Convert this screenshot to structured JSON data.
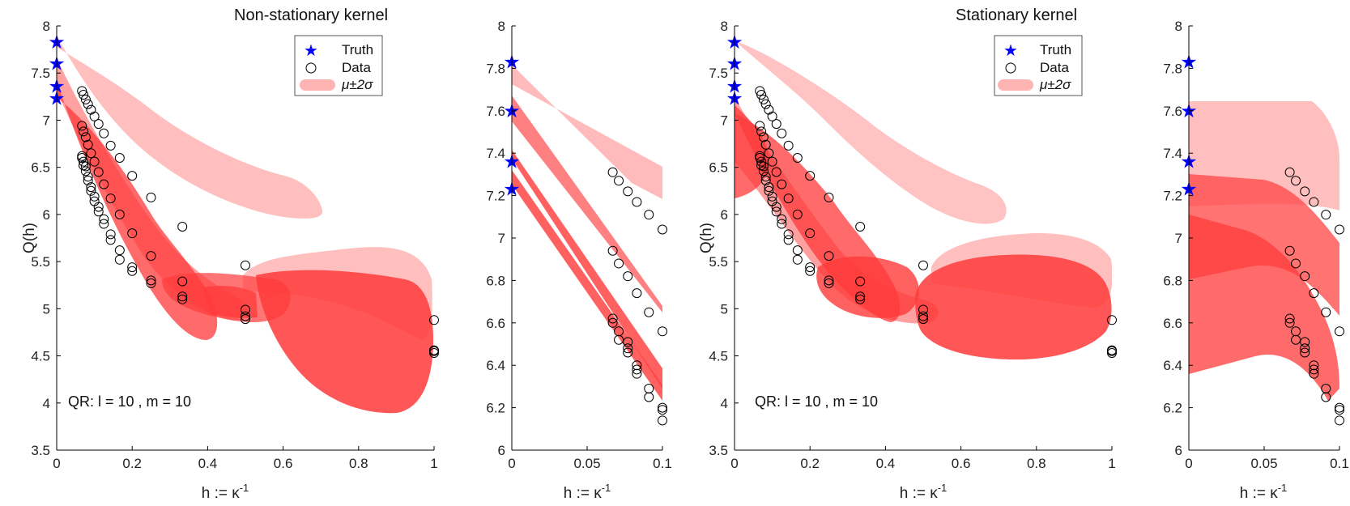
{
  "figure": {
    "legend": {
      "truth": "Truth",
      "data": "Data",
      "band": "μ±2σ"
    },
    "annotation": "QR: l = 10 , m = 10"
  },
  "colors": {
    "truth": "#0000ff",
    "band_light": "#ffb4b4",
    "band_dark": "#ff3a3a",
    "axis": "#000000"
  },
  "chart_data": [
    {
      "id": "p1",
      "type": "scatter",
      "title": "Non-stationary kernel",
      "xlabel": "h := κ",
      "xlabel_sup": "-1",
      "ylabel": "Q(h)",
      "xlim": [
        0,
        1
      ],
      "ylim": [
        3.5,
        8
      ],
      "xticks": [
        0,
        0.2,
        0.4,
        0.6,
        0.8,
        1
      ],
      "xticklabels": [
        "0",
        "0.2",
        "0.4",
        "0.6",
        "0.8",
        "1"
      ],
      "yticks": [
        3.5,
        4,
        4.5,
        5,
        5.5,
        6,
        6.5,
        7,
        7.5,
        8
      ],
      "yticklabels": [
        "3.5",
        "4",
        "4.5",
        "5",
        "5.5",
        "6",
        "6.5",
        "7",
        "7.5",
        "8"
      ],
      "legend_position": "top-right",
      "annotation_position": "bottom-left",
      "truth": [
        {
          "x": 0,
          "y": 7.83
        },
        {
          "x": 0,
          "y": 7.6
        },
        {
          "x": 0,
          "y": 7.36
        },
        {
          "x": 0,
          "y": 7.23
        }
      ],
      "data_points": [
        {
          "x": 0.067,
          "y": 7.31
        },
        {
          "x": 0.071,
          "y": 7.27
        },
        {
          "x": 0.077,
          "y": 7.22
        },
        {
          "x": 0.083,
          "y": 7.17
        },
        {
          "x": 0.091,
          "y": 7.11
        },
        {
          "x": 0.1,
          "y": 7.04
        },
        {
          "x": 0.111,
          "y": 6.96
        },
        {
          "x": 0.125,
          "y": 6.86
        },
        {
          "x": 0.143,
          "y": 6.73
        },
        {
          "x": 0.167,
          "y": 6.6
        },
        {
          "x": 0.2,
          "y": 6.41
        },
        {
          "x": 0.25,
          "y": 6.18
        },
        {
          "x": 0.333,
          "y": 5.87
        },
        {
          "x": 0.5,
          "y": 5.46
        },
        {
          "x": 1,
          "y": 4.88
        },
        {
          "x": 0.067,
          "y": 6.94
        },
        {
          "x": 0.071,
          "y": 6.88
        },
        {
          "x": 0.077,
          "y": 6.82
        },
        {
          "x": 0.083,
          "y": 6.74
        },
        {
          "x": 0.091,
          "y": 6.65
        },
        {
          "x": 0.1,
          "y": 6.56
        },
        {
          "x": 0.111,
          "y": 6.45
        },
        {
          "x": 0.125,
          "y": 6.32
        },
        {
          "x": 0.143,
          "y": 6.17
        },
        {
          "x": 0.167,
          "y": 6.0
        },
        {
          "x": 0.2,
          "y": 5.8
        },
        {
          "x": 0.25,
          "y": 5.56
        },
        {
          "x": 0.333,
          "y": 5.29
        },
        {
          "x": 0.5,
          "y": 4.99
        },
        {
          "x": 1,
          "y": 4.56
        },
        {
          "x": 0.067,
          "y": 6.62
        },
        {
          "x": 0.071,
          "y": 6.56
        },
        {
          "x": 0.077,
          "y": 6.51
        },
        {
          "x": 0.083,
          "y": 6.4
        },
        {
          "x": 0.091,
          "y": 6.29
        },
        {
          "x": 0.1,
          "y": 6.19
        },
        {
          "x": 0.111,
          "y": 6.08
        },
        {
          "x": 0.125,
          "y": 5.95
        },
        {
          "x": 0.143,
          "y": 5.79
        },
        {
          "x": 0.167,
          "y": 5.62
        },
        {
          "x": 0.2,
          "y": 5.44
        },
        {
          "x": 0.25,
          "y": 5.3
        },
        {
          "x": 0.333,
          "y": 5.13
        },
        {
          "x": 0.5,
          "y": 4.92
        },
        {
          "x": 1,
          "y": 4.55
        },
        {
          "x": 0.067,
          "y": 6.6
        },
        {
          "x": 0.071,
          "y": 6.52
        },
        {
          "x": 0.077,
          "y": 6.46
        },
        {
          "x": 0.083,
          "y": 6.36
        },
        {
          "x": 0.091,
          "y": 6.25
        },
        {
          "x": 0.1,
          "y": 6.14
        },
        {
          "x": 0.111,
          "y": 6.03
        },
        {
          "x": 0.125,
          "y": 5.9
        },
        {
          "x": 0.143,
          "y": 5.73
        },
        {
          "x": 0.167,
          "y": 5.52
        },
        {
          "x": 0.2,
          "y": 5.4
        },
        {
          "x": 0.25,
          "y": 5.27
        },
        {
          "x": 0.333,
          "y": 5.1
        },
        {
          "x": 0.5,
          "y": 4.89
        },
        {
          "x": 1,
          "y": 4.53
        }
      ]
    },
    {
      "id": "p2",
      "type": "scatter",
      "title": "",
      "xlabel": "h := κ",
      "xlabel_sup": "-1",
      "ylabel": "",
      "xlim": [
        0,
        0.1
      ],
      "ylim": [
        6,
        8
      ],
      "xticks": [
        0,
        0.05,
        0.1
      ],
      "xticklabels": [
        "0",
        "0.05",
        "0.1"
      ],
      "yticks": [
        6,
        6.2,
        6.4,
        6.6,
        6.8,
        7,
        7.2,
        7.4,
        7.6,
        7.8,
        8
      ],
      "yticklabels": [
        "6",
        "6.2",
        "6.4",
        "6.6",
        "6.8",
        "7",
        "7.2",
        "7.4",
        "7.6",
        "7.8",
        "8"
      ],
      "truth": [
        {
          "x": 0,
          "y": 7.83
        },
        {
          "x": 0,
          "y": 7.6
        },
        {
          "x": 0,
          "y": 7.36
        },
        {
          "x": 0,
          "y": 7.23
        }
      ],
      "data_points": [
        {
          "x": 0.067,
          "y": 7.31
        },
        {
          "x": 0.071,
          "y": 7.27
        },
        {
          "x": 0.077,
          "y": 7.22
        },
        {
          "x": 0.083,
          "y": 7.17
        },
        {
          "x": 0.091,
          "y": 7.11
        },
        {
          "x": 0.1,
          "y": 7.04
        },
        {
          "x": 0.067,
          "y": 6.94
        },
        {
          "x": 0.071,
          "y": 6.88
        },
        {
          "x": 0.077,
          "y": 6.82
        },
        {
          "x": 0.083,
          "y": 6.74
        },
        {
          "x": 0.091,
          "y": 6.65
        },
        {
          "x": 0.1,
          "y": 6.56
        },
        {
          "x": 0.067,
          "y": 6.62
        },
        {
          "x": 0.071,
          "y": 6.56
        },
        {
          "x": 0.077,
          "y": 6.51
        },
        {
          "x": 0.083,
          "y": 6.4
        },
        {
          "x": 0.091,
          "y": 6.29
        },
        {
          "x": 0.1,
          "y": 6.19
        },
        {
          "x": 0.067,
          "y": 6.6
        },
        {
          "x": 0.071,
          "y": 6.52
        },
        {
          "x": 0.077,
          "y": 6.46
        },
        {
          "x": 0.083,
          "y": 6.36
        },
        {
          "x": 0.091,
          "y": 6.25
        },
        {
          "x": 0.1,
          "y": 6.14
        },
        {
          "x": 0.077,
          "y": 6.48
        },
        {
          "x": 0.083,
          "y": 6.38
        },
        {
          "x": 0.1,
          "y": 6.2
        }
      ]
    },
    {
      "id": "p3",
      "type": "scatter",
      "title": "Stationary kernel",
      "xlabel": "h := κ",
      "xlabel_sup": "-1",
      "ylabel": "Q(h)",
      "xlim": [
        0,
        1
      ],
      "ylim": [
        3.5,
        8
      ],
      "xticks": [
        0,
        0.2,
        0.4,
        0.6,
        0.8,
        1
      ],
      "xticklabels": [
        "0",
        "0.2",
        "0.4",
        "0.6",
        "0.8",
        "1"
      ],
      "yticks": [
        3.5,
        4,
        4.5,
        5,
        5.5,
        6,
        6.5,
        7,
        7.5,
        8
      ],
      "yticklabels": [
        "3.5",
        "4",
        "4.5",
        "5",
        "5.5",
        "6",
        "6.5",
        "7",
        "7.5",
        "8"
      ],
      "legend_position": "top-right",
      "annotation_position": "bottom-left",
      "truth": [
        {
          "x": 0,
          "y": 7.83
        },
        {
          "x": 0,
          "y": 7.6
        },
        {
          "x": 0,
          "y": 7.36
        },
        {
          "x": 0,
          "y": 7.23
        }
      ],
      "data_points": [
        {
          "x": 0.067,
          "y": 7.31
        },
        {
          "x": 0.071,
          "y": 7.27
        },
        {
          "x": 0.077,
          "y": 7.22
        },
        {
          "x": 0.083,
          "y": 7.17
        },
        {
          "x": 0.091,
          "y": 7.11
        },
        {
          "x": 0.1,
          "y": 7.04
        },
        {
          "x": 0.111,
          "y": 6.96
        },
        {
          "x": 0.125,
          "y": 6.86
        },
        {
          "x": 0.143,
          "y": 6.73
        },
        {
          "x": 0.167,
          "y": 6.6
        },
        {
          "x": 0.2,
          "y": 6.41
        },
        {
          "x": 0.25,
          "y": 6.18
        },
        {
          "x": 0.333,
          "y": 5.87
        },
        {
          "x": 0.5,
          "y": 5.46
        },
        {
          "x": 1,
          "y": 4.88
        },
        {
          "x": 0.067,
          "y": 6.94
        },
        {
          "x": 0.071,
          "y": 6.88
        },
        {
          "x": 0.077,
          "y": 6.82
        },
        {
          "x": 0.083,
          "y": 6.74
        },
        {
          "x": 0.091,
          "y": 6.65
        },
        {
          "x": 0.1,
          "y": 6.56
        },
        {
          "x": 0.111,
          "y": 6.45
        },
        {
          "x": 0.125,
          "y": 6.32
        },
        {
          "x": 0.143,
          "y": 6.17
        },
        {
          "x": 0.167,
          "y": 6.0
        },
        {
          "x": 0.2,
          "y": 5.8
        },
        {
          "x": 0.25,
          "y": 5.56
        },
        {
          "x": 0.333,
          "y": 5.29
        },
        {
          "x": 0.5,
          "y": 4.99
        },
        {
          "x": 1,
          "y": 4.56
        },
        {
          "x": 0.067,
          "y": 6.62
        },
        {
          "x": 0.071,
          "y": 6.56
        },
        {
          "x": 0.077,
          "y": 6.51
        },
        {
          "x": 0.083,
          "y": 6.4
        },
        {
          "x": 0.091,
          "y": 6.29
        },
        {
          "x": 0.1,
          "y": 6.19
        },
        {
          "x": 0.111,
          "y": 6.08
        },
        {
          "x": 0.125,
          "y": 5.95
        },
        {
          "x": 0.143,
          "y": 5.79
        },
        {
          "x": 0.167,
          "y": 5.62
        },
        {
          "x": 0.2,
          "y": 5.44
        },
        {
          "x": 0.25,
          "y": 5.3
        },
        {
          "x": 0.333,
          "y": 5.13
        },
        {
          "x": 0.5,
          "y": 4.92
        },
        {
          "x": 1,
          "y": 4.55
        },
        {
          "x": 0.067,
          "y": 6.6
        },
        {
          "x": 0.071,
          "y": 6.52
        },
        {
          "x": 0.077,
          "y": 6.46
        },
        {
          "x": 0.083,
          "y": 6.36
        },
        {
          "x": 0.091,
          "y": 6.25
        },
        {
          "x": 0.1,
          "y": 6.14
        },
        {
          "x": 0.111,
          "y": 6.03
        },
        {
          "x": 0.125,
          "y": 5.9
        },
        {
          "x": 0.143,
          "y": 5.73
        },
        {
          "x": 0.167,
          "y": 5.52
        },
        {
          "x": 0.2,
          "y": 5.4
        },
        {
          "x": 0.25,
          "y": 5.27
        },
        {
          "x": 0.333,
          "y": 5.1
        },
        {
          "x": 0.5,
          "y": 4.89
        },
        {
          "x": 1,
          "y": 4.53
        }
      ]
    },
    {
      "id": "p4",
      "type": "scatter",
      "title": "",
      "xlabel": "h := κ",
      "xlabel_sup": "-1",
      "ylabel": "",
      "xlim": [
        0,
        0.1
      ],
      "ylim": [
        6,
        8
      ],
      "xticks": [
        0,
        0.05,
        0.1
      ],
      "xticklabels": [
        "0",
        "0.05",
        "0.1"
      ],
      "yticks": [
        6,
        6.2,
        6.4,
        6.6,
        6.8,
        7,
        7.2,
        7.4,
        7.6,
        7.8,
        8
      ],
      "yticklabels": [
        "6",
        "6.2",
        "6.4",
        "6.6",
        "6.8",
        "7",
        "7.2",
        "7.4",
        "7.6",
        "7.8",
        "8"
      ],
      "truth": [
        {
          "x": 0,
          "y": 7.83
        },
        {
          "x": 0,
          "y": 7.6
        },
        {
          "x": 0,
          "y": 7.36
        },
        {
          "x": 0,
          "y": 7.23
        }
      ],
      "data_points": [
        {
          "x": 0.067,
          "y": 7.31
        },
        {
          "x": 0.071,
          "y": 7.27
        },
        {
          "x": 0.077,
          "y": 7.22
        },
        {
          "x": 0.083,
          "y": 7.17
        },
        {
          "x": 0.091,
          "y": 7.11
        },
        {
          "x": 0.1,
          "y": 7.04
        },
        {
          "x": 0.067,
          "y": 6.94
        },
        {
          "x": 0.071,
          "y": 6.88
        },
        {
          "x": 0.077,
          "y": 6.82
        },
        {
          "x": 0.083,
          "y": 6.74
        },
        {
          "x": 0.091,
          "y": 6.65
        },
        {
          "x": 0.1,
          "y": 6.56
        },
        {
          "x": 0.067,
          "y": 6.62
        },
        {
          "x": 0.071,
          "y": 6.56
        },
        {
          "x": 0.077,
          "y": 6.51
        },
        {
          "x": 0.083,
          "y": 6.4
        },
        {
          "x": 0.091,
          "y": 6.29
        },
        {
          "x": 0.1,
          "y": 6.19
        },
        {
          "x": 0.067,
          "y": 6.6
        },
        {
          "x": 0.071,
          "y": 6.52
        },
        {
          "x": 0.077,
          "y": 6.46
        },
        {
          "x": 0.083,
          "y": 6.36
        },
        {
          "x": 0.091,
          "y": 6.25
        },
        {
          "x": 0.1,
          "y": 6.14
        },
        {
          "x": 0.077,
          "y": 6.48
        },
        {
          "x": 0.083,
          "y": 6.38
        },
        {
          "x": 0.1,
          "y": 6.2
        }
      ]
    }
  ]
}
